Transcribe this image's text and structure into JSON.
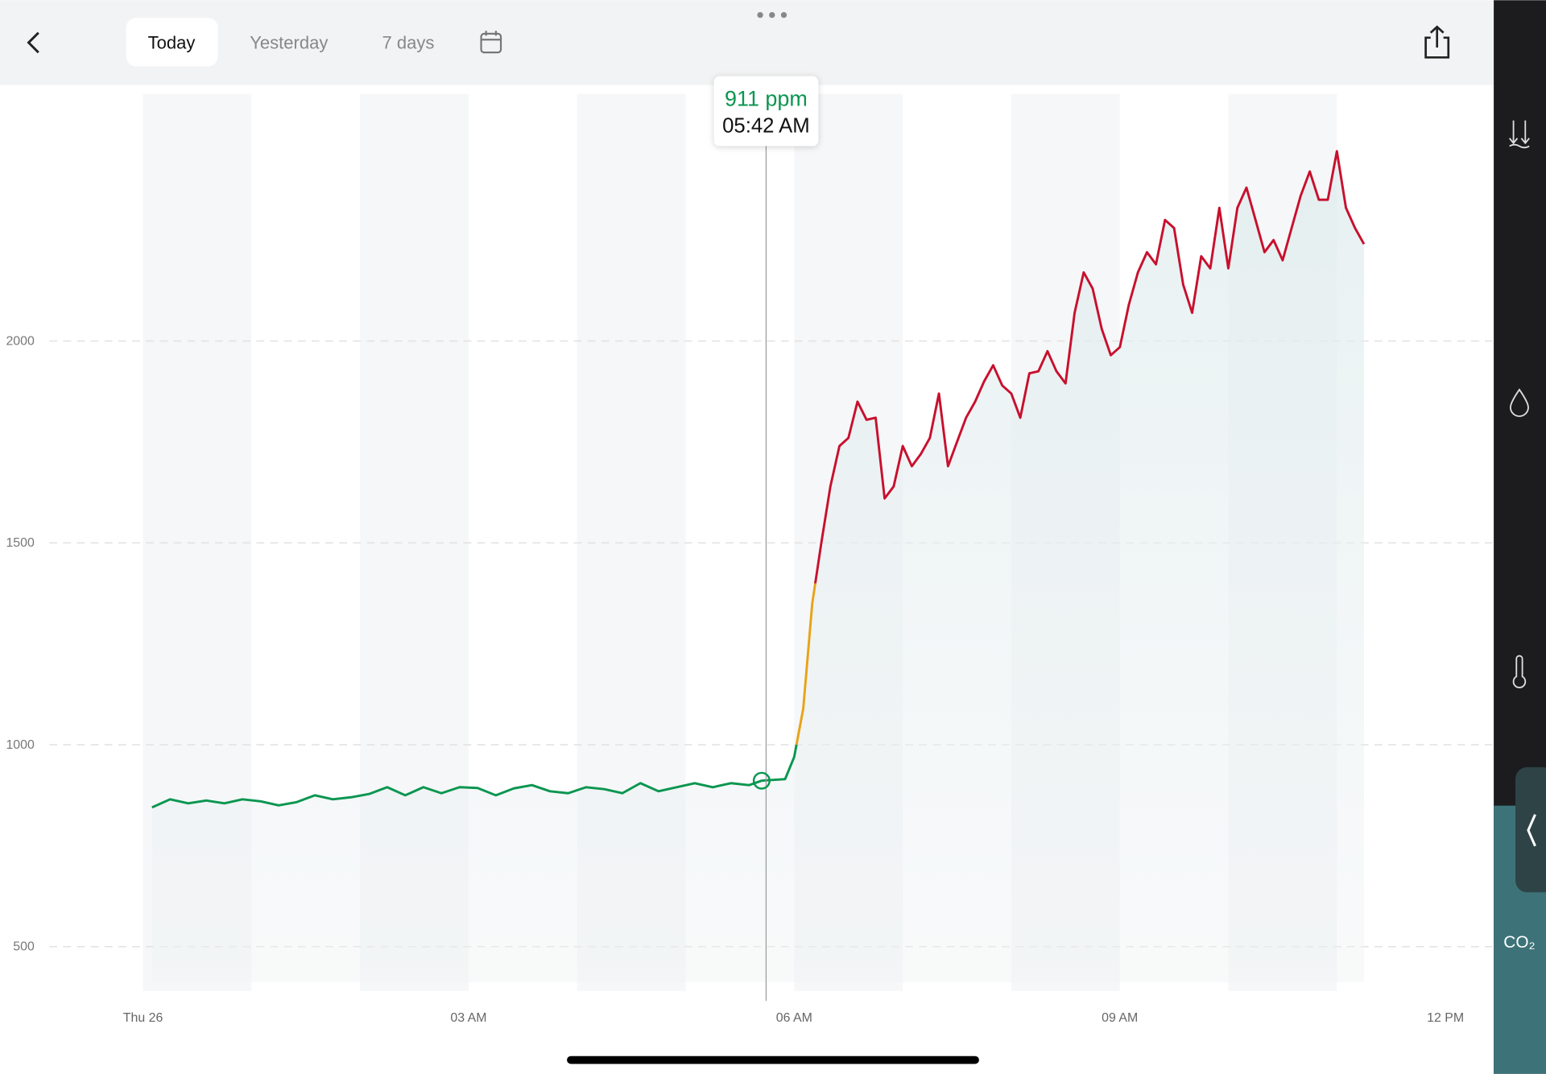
{
  "ui": {
    "tabs": [
      "Today",
      "Yesterday",
      "7 days"
    ],
    "tooltip": {
      "value": "911 ppm",
      "time": "05:42 AM"
    },
    "sidebar_label": "CO₂"
  },
  "chart_data": {
    "type": "line",
    "x": [
      5,
      15,
      25,
      35,
      45,
      55,
      65,
      75,
      85,
      95,
      105,
      115,
      125,
      135,
      145,
      155,
      165,
      175,
      185,
      195,
      205,
      215,
      225,
      235,
      245,
      255,
      265,
      275,
      285,
      295,
      305,
      315,
      325,
      335,
      342,
      345,
      355,
      360,
      365,
      370,
      375,
      380,
      385,
      390,
      395,
      400,
      405,
      410,
      415,
      420,
      425,
      430,
      435,
      440,
      445,
      450,
      455,
      460,
      465,
      470,
      475,
      480,
      485,
      490,
      495,
      500,
      505,
      510,
      515,
      520,
      525,
      530,
      535,
      540,
      545,
      550,
      555,
      560,
      565,
      570,
      575,
      580,
      585,
      590,
      595,
      600,
      605,
      610,
      615,
      620,
      625,
      630,
      635,
      640,
      645,
      650,
      655,
      660,
      665,
      670,
      675
    ],
    "series": [
      {
        "values": [
          845,
          865,
          855,
          862,
          855,
          865,
          860,
          850,
          858,
          875,
          865,
          870,
          878,
          895,
          875,
          895,
          880,
          895,
          893,
          875,
          892,
          900,
          885,
          880,
          895,
          890,
          880,
          905,
          885,
          895,
          905,
          895,
          905,
          900,
          911,
          912,
          915,
          970,
          1090,
          1350,
          1500,
          1640,
          1740,
          1760,
          1850,
          1805,
          1810,
          1610,
          1640,
          1740,
          1690,
          1720,
          1760,
          1870,
          1690,
          1750,
          1810,
          1850,
          1900,
          1940,
          1890,
          1870,
          1810,
          1920,
          1925,
          1975,
          1925,
          1895,
          2070,
          2170,
          2130,
          2030,
          1965,
          1985,
          2090,
          2170,
          2220,
          2190,
          2300,
          2280,
          2140,
          2070,
          2210,
          2180,
          2330,
          2180,
          2330,
          2380,
          2300,
          2220,
          2250,
          2200,
          2280,
          2360,
          2420,
          2350,
          2350,
          2470,
          2330,
          2280,
          2240
        ]
      }
    ],
    "color_levels": [
      {
        "upto": 1000,
        "color": "#0a9650"
      },
      {
        "upto": 1400,
        "color": "#e8a317"
      },
      {
        "color": "#c8102e"
      }
    ],
    "xlim": [
      0,
      720
    ],
    "xticks": [
      {
        "value": 0,
        "label": "Thu 26"
      },
      {
        "value": 180,
        "label": "03 AM"
      },
      {
        "value": 360,
        "label": "06 AM"
      },
      {
        "value": 540,
        "label": "09 AM"
      },
      {
        "value": 720,
        "label": "12 PM"
      }
    ],
    "ylim": [
      400,
      2600
    ],
    "yticks": [
      500,
      1000,
      1500,
      2000
    ],
    "grid": true
  }
}
